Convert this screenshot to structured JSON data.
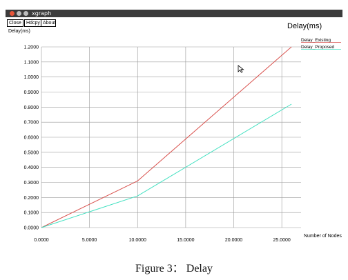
{
  "window": {
    "title": "xgraph"
  },
  "buttons": {
    "close": "Close",
    "hdcpy": "Hdcpy",
    "about": "About"
  },
  "caption": "Figure 3： Delay",
  "chart_data": {
    "type": "line",
    "title": "Delay(ms)",
    "ylabel": "Delay(ms)",
    "xlabel": "Number of Nodes",
    "xlim": [
      0,
      27
    ],
    "ylim": [
      0,
      1.2
    ],
    "grid": true,
    "legend": "top-right",
    "x_ticks": [
      "0.0000",
      "5.0000",
      "10.0000",
      "15.0000",
      "20.0000",
      "25.0000"
    ],
    "y_ticks": [
      "0.0000",
      "0.1000",
      "0.2000",
      "0.3000",
      "0.4000",
      "0.5000",
      "0.6000",
      "0.7000",
      "0.8000",
      "0.9000",
      "1.0000",
      "1.1000",
      "1.2000"
    ],
    "series": [
      {
        "name": "Delay_Existing",
        "color": "#d9534f",
        "x": [
          0,
          10,
          26
        ],
        "y": [
          0,
          0.31,
          1.2
        ]
      },
      {
        "name": "Delay_Proposed",
        "color": "#40e0c0",
        "x": [
          0,
          10,
          26
        ],
        "y": [
          0,
          0.21,
          0.82
        ]
      }
    ]
  }
}
